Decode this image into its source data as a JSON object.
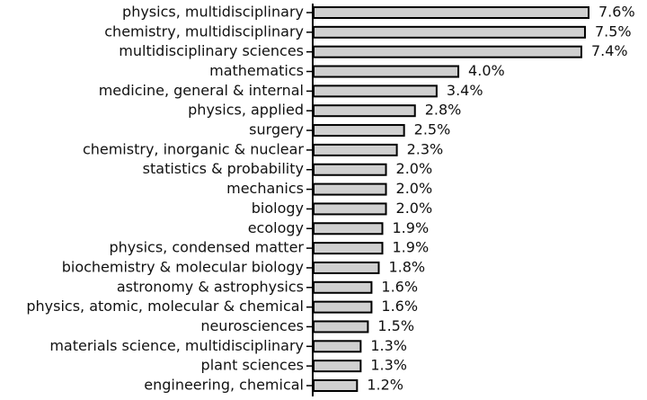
{
  "chart_data": {
    "type": "bar",
    "orientation": "horizontal",
    "color": "#d0d0d0",
    "categories": [
      "physics, multidisciplinary",
      "chemistry, multidisciplinary",
      "multidisciplinary sciences",
      "mathematics",
      "medicine, general & internal",
      "physics, applied",
      "surgery",
      "chemistry, inorganic & nuclear",
      "statistics & probability",
      "mechanics",
      "biology",
      "ecology",
      "physics, condensed matter",
      "biochemistry & molecular biology",
      "astronomy & astrophysics",
      "physics, atomic, molecular & chemical",
      "neurosciences",
      "materials science, multidisciplinary",
      "plant sciences",
      "engineering, chemical"
    ],
    "values": [
      7.6,
      7.5,
      7.4,
      4.0,
      3.4,
      2.8,
      2.5,
      2.3,
      2.0,
      2.0,
      2.0,
      1.9,
      1.9,
      1.8,
      1.6,
      1.6,
      1.5,
      1.3,
      1.3,
      1.2
    ],
    "value_labels": [
      "7.6%",
      "7.5%",
      "7.4%",
      "4.0%",
      "3.4%",
      "2.8%",
      "2.5%",
      "2.3%",
      "2.0%",
      "2.0%",
      "2.0%",
      "1.9%",
      "1.9%",
      "1.8%",
      "1.6%",
      "1.6%",
      "1.5%",
      "1.3%",
      "1.3%",
      "1.2%"
    ]
  }
}
